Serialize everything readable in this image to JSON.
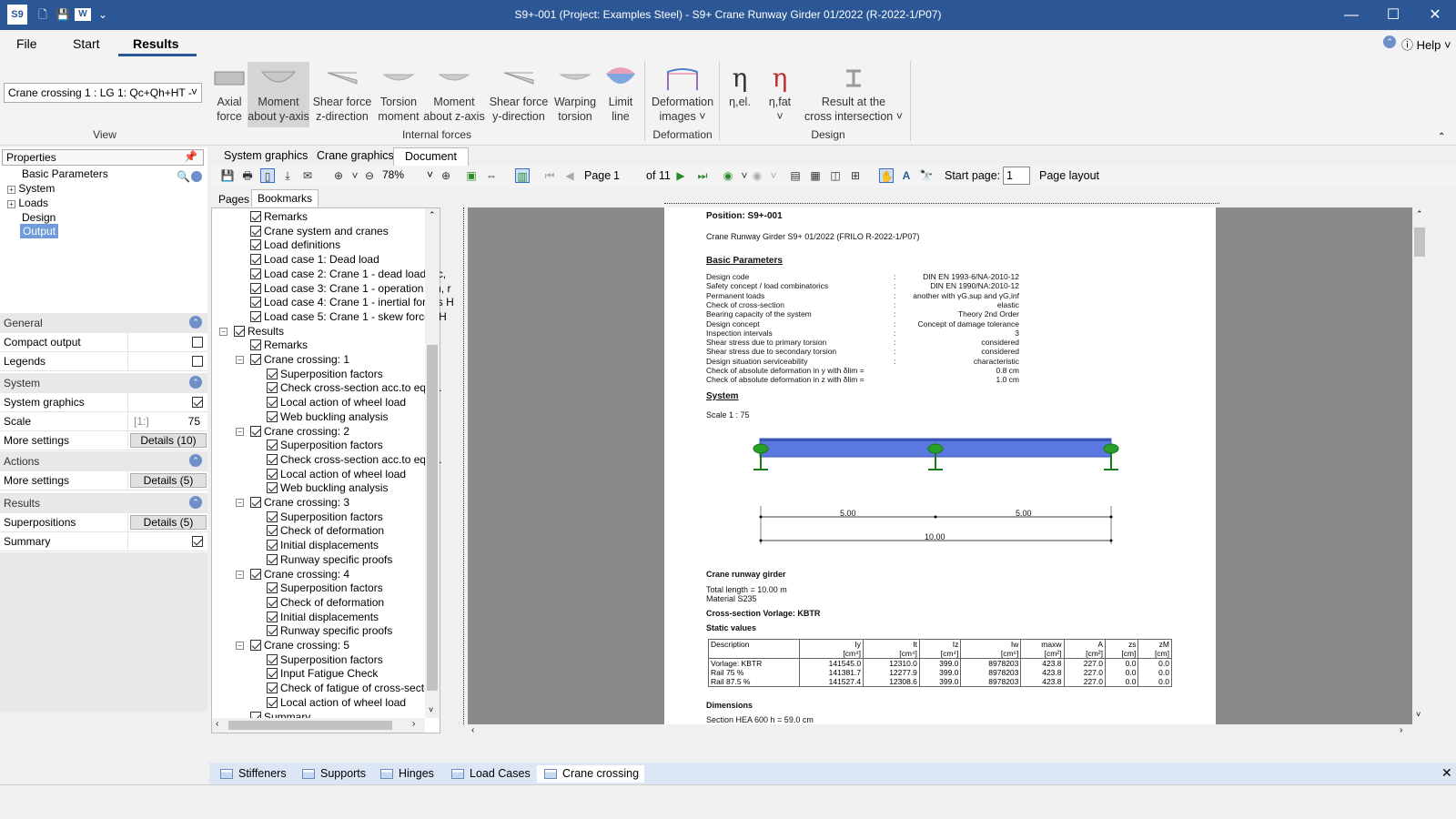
{
  "title": "S9+-001 (Project: Examples Steel) - S9+ Crane Runway Girder 01/2022 (R-2022-1/P07)",
  "menu": {
    "file": "File",
    "start": "Start",
    "results": "Results",
    "help": "Help"
  },
  "view_selector": "Crane crossing 1 : LG 1: Qc+Qh+HT -",
  "ribbon": {
    "buttons": [
      {
        "l1": "Axial",
        "l2": "force"
      },
      {
        "l1": "Moment",
        "l2": "about y-axis"
      },
      {
        "l1": "Shear force",
        "l2": "z-direction"
      },
      {
        "l1": "Torsion",
        "l2": "moment"
      },
      {
        "l1": "Moment",
        "l2": "about z-axis"
      },
      {
        "l1": "Shear force",
        "l2": "y-direction"
      },
      {
        "l1": "Warping",
        "l2": "torsion"
      },
      {
        "l1": "Limit",
        "l2": "line"
      },
      {
        "l1": "Deformation",
        "l2": "images ˅"
      },
      {
        "l1": "η,el.",
        "l2": ""
      },
      {
        "l1": "η,fat",
        "l2": "˅"
      },
      {
        "l1": "Result at the",
        "l2": "cross intersection ˅"
      }
    ],
    "groups": {
      "view": "View",
      "internal": "Internal forces",
      "deformation": "Deformation",
      "design": "Design"
    }
  },
  "properties": {
    "title": "Properties",
    "tree": [
      "Basic Parameters",
      "System",
      "Loads",
      "Design",
      "Output"
    ],
    "sections": {
      "general": "General",
      "system": "System",
      "actions": "Actions",
      "results": "Results"
    },
    "rows": {
      "compact": "Compact output",
      "legends": "Legends",
      "sysgfx": "System graphics",
      "scale": "Scale",
      "scale_unit": "[1:]",
      "scale_val": "75",
      "more1": "More settings",
      "det1": "Details (10)",
      "more2": "More settings",
      "det2": "Details (5)",
      "superpos": "Superpositions",
      "det3": "Details (5)",
      "summary": "Summary"
    }
  },
  "doc_tabs": [
    "System graphics",
    "Crane graphics",
    "Document"
  ],
  "toolbar": {
    "zoom": "78%",
    "page_label": "Page",
    "page": "1",
    "of": "of 11",
    "start_page": "Start page:",
    "start_val": "1",
    "layout": "Page layout"
  },
  "bm_tabs": [
    "Pages",
    "Bookmarks"
  ],
  "bookmarks": [
    "Remarks",
    "Crane system and cranes",
    "Load definitions",
    "Load case 1: Dead load",
    "Load case 2: Crane 1 - dead load Qc,",
    "Load case 3: Crane 1 - operation Qh, r",
    "Load case 4: Crane 1 - inertial forces H",
    "Load case 5: Crane 1 - skew forces H",
    "Results",
    "Remarks",
    "Crane crossing: 1",
    "Superposition factors",
    "Check cross-section acc.to eq.(6.",
    "Local action of wheel load",
    "Web buckling analysis",
    "Crane crossing: 2",
    "Superposition factors",
    "Check cross-section acc.to eq.(6.",
    "Local action of wheel load",
    "Web buckling analysis",
    "Crane crossing: 3",
    "Superposition factors",
    "Check of deformation",
    "Initial displacements",
    "Runway specific proofs",
    "Crane crossing: 4",
    "Superposition factors",
    "Check of deformation",
    "Initial displacements",
    "Runway specific proofs",
    "Crane crossing: 5",
    "Superposition factors",
    "Input Fatigue Check",
    "Check of fatigue of cross-section",
    "Local action of wheel load",
    "Summary"
  ],
  "doc": {
    "position": "Position: S9+-001",
    "subtitle": "Crane Runway Girder S9+ 01/2022 (FRILO R-2022-1/P07)",
    "basic_head": "Basic Parameters",
    "params": [
      [
        "Design code",
        "DIN EN 1993-6/NA-2010-12"
      ],
      [
        "Safety concept / load combinatorics",
        "DIN EN 1990/NA:2010-12"
      ],
      [
        "Permanent loads",
        "another with γG,sup and γG,inf"
      ],
      [
        "Check of cross-section",
        "elastic"
      ],
      [
        "Bearing capacity of the system",
        "Theory 2nd Order"
      ],
      [
        "Design concept",
        "Concept of damage tolerance"
      ],
      [
        "Inspection intervals",
        "3"
      ],
      [
        "Shear stress due to primary torsion",
        "considered"
      ],
      [
        "Shear stress due to secondary torsion",
        "considered"
      ],
      [
        "Design situation serviceability",
        "characteristic"
      ],
      [
        "Check of absolute deformation in y with   δlim  =",
        "0.8  cm"
      ],
      [
        "Check of absolute deformation in z with   δlim  =",
        "1.0  cm"
      ]
    ],
    "system_head": "System",
    "scale": "Scale 1 : 75",
    "dim1": "5.00",
    "dim2": "5.00",
    "dim3": "10.00",
    "girder_head": "Crane runway girder",
    "total_length": "Total length   =   10.00   m",
    "material": "Material          S235",
    "cs": "Cross-section Vorlage: KBTR",
    "static": "Static values",
    "table_head": [
      "Description",
      "Iy\n[cm⁴]",
      "It\n[cm⁴]",
      "Iz\n[cm⁴]",
      "Iw\n[cm⁶]",
      "maxw\n[cm²]",
      "A\n[cm²]",
      "zs\n[cm]",
      "zM\n[cm]"
    ],
    "table_rows": [
      [
        "Vorlage: KBTR",
        "141545.0",
        "12310.0",
        "399.0",
        "8978203",
        "423.8",
        "227.0",
        "0.0",
        "0.0"
      ],
      [
        "Rail  75 %",
        "141381.7",
        "12277.9",
        "399.0",
        "8978203",
        "423.8",
        "227.0",
        "0.0",
        "0.0"
      ],
      [
        "Rail  87.5 %",
        "141527.4",
        "12308.6",
        "399.0",
        "8978203",
        "423.8",
        "227.0",
        "0.0",
        "0.0"
      ]
    ],
    "dims_head": "Dimensions",
    "section": "Section HEA 600                    h   =   59.0   cm"
  },
  "bottom_tabs": [
    "Stiffeners",
    "Supports",
    "Hinges",
    "Load Cases",
    "Crane crossing"
  ]
}
